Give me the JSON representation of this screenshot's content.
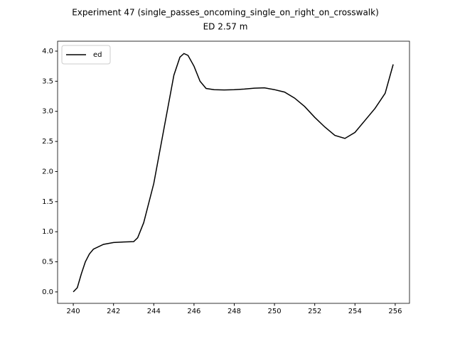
{
  "chart_data": {
    "type": "line",
    "title": "Experiment 47 (single_passes_oncoming_single_on_right_on_crosswalk)",
    "subtitle": "ED 2.57 m",
    "x": [
      240.0,
      240.2,
      240.4,
      240.6,
      240.8,
      241.0,
      241.5,
      242.0,
      242.5,
      243.0,
      243.2,
      243.5,
      244.0,
      244.5,
      245.0,
      245.3,
      245.5,
      245.7,
      246.0,
      246.3,
      246.6,
      247.0,
      247.5,
      248.0,
      248.5,
      249.0,
      249.5,
      250.0,
      250.5,
      251.0,
      251.5,
      252.0,
      252.5,
      253.0,
      253.5,
      254.0,
      254.5,
      255.0,
      255.5,
      255.9
    ],
    "series": [
      {
        "name": "ed",
        "color": "#000000",
        "values": [
          0.0,
          0.07,
          0.3,
          0.5,
          0.63,
          0.71,
          0.79,
          0.82,
          0.83,
          0.835,
          0.9,
          1.15,
          1.8,
          2.7,
          3.6,
          3.9,
          3.96,
          3.93,
          3.75,
          3.5,
          3.38,
          3.36,
          3.355,
          3.36,
          3.37,
          3.385,
          3.39,
          3.36,
          3.32,
          3.22,
          3.08,
          2.9,
          2.74,
          2.6,
          2.55,
          2.65,
          2.85,
          3.05,
          3.3,
          3.78
        ]
      }
    ],
    "xlim": [
      239.22,
      256.71
    ],
    "xticks": [
      240,
      242,
      244,
      246,
      248,
      250,
      252,
      254,
      256
    ],
    "ylim": [
      -0.19,
      4.165
    ],
    "yticks": [
      {
        "value": 0,
        "label": "0.0"
      },
      0.5,
      {
        "value": 1,
        "label": "1.0"
      },
      1.5,
      {
        "value": 2,
        "label": "2.0"
      },
      2.5,
      {
        "value": 3,
        "label": "3.0"
      },
      3.5,
      {
        "value": 4,
        "label": "4.0"
      }
    ],
    "legend": "upper left"
  }
}
